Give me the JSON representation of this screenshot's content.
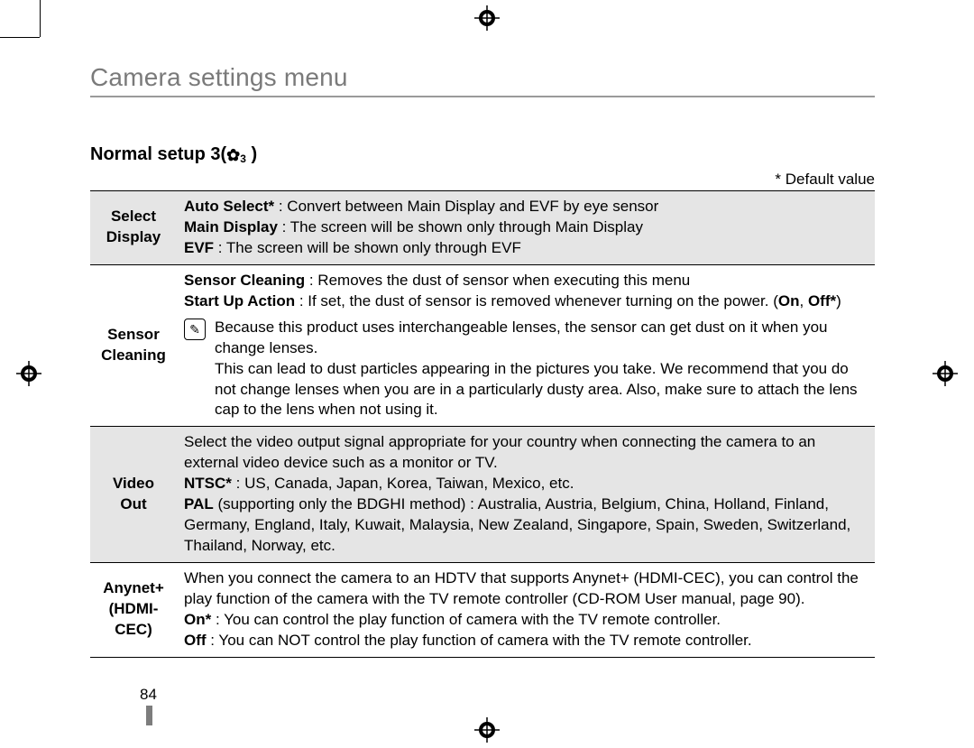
{
  "title": "Camera settings menu",
  "subtitle_prefix": "Normal setup 3(",
  "subtitle_gear": "✿",
  "subtitle_num": "3",
  "subtitle_suffix": " )",
  "default_note": "* Default value",
  "page_number": "84",
  "note_icon_glyph": "✎",
  "colors": {
    "title_text": "#7a7a7a",
    "title_rule": "#9a9a9a",
    "row_shade": "#e5e5e5",
    "page_bar": "#7d7d7d",
    "text": "#000000",
    "bg": "#ffffff"
  },
  "rows": [
    {
      "key": "select_display",
      "shaded": true,
      "label_lines": [
        "Select",
        "Display"
      ],
      "body": {
        "lines": [
          {
            "bold": "Auto Select*",
            "rest": " :   Convert between Main Display and EVF by eye sensor"
          },
          {
            "bold": "Main Display",
            "rest": " : The screen will be shown only through Main Display"
          },
          {
            "bold": "EVF",
            "rest": " : The screen will be shown only through EVF"
          }
        ]
      }
    },
    {
      "key": "sensor_cleaning",
      "shaded": false,
      "label_lines": [
        "Sensor",
        "Cleaning"
      ],
      "body": {
        "lines": [
          {
            "bold": "Sensor Cleaning",
            "rest": " : Removes the dust of sensor when executing this menu"
          },
          {
            "bold": "Start Up Action",
            "rest": " : If set, the dust of sensor is removed whenever turning on the power. (",
            "bold2": "On",
            "mid": ", ",
            "bold3": "Off*",
            "tail": ")"
          }
        ],
        "note": "Because this product uses interchangeable lenses, the sensor can get dust on it when you change lenses.\nThis can lead to dust particles appearing in the pictures you take. We recommend that you do not change lenses when you are in a particularly dusty area. Also, make sure to attach the lens cap to the lens when not using it."
      }
    },
    {
      "key": "video_out",
      "shaded": true,
      "label_lines": [
        "Video",
        "Out"
      ],
      "body": {
        "intro": "Select the video output signal appropriate for your country when connecting the camera to an external video device such as a monitor or TV.",
        "lines": [
          {
            "bold": "NTSC*",
            "rest": " : US, Canada, Japan, Korea, Taiwan, Mexico, etc."
          },
          {
            "bold": "PAL",
            "rest": " (supporting only the BDGHI method) : Australia, Austria, Belgium, China, Holland, Finland, Germany, England, Italy, Kuwait, Malaysia, New Zealand, Singapore, Spain, Sweden, Switzerland, Thailand, Norway, etc."
          }
        ]
      }
    },
    {
      "key": "anynet",
      "shaded": false,
      "label_lines": [
        "Anynet+",
        "(HDMI-",
        "CEC)"
      ],
      "body": {
        "intro": "When you connect the camera to an HDTV that supports Anynet+ (HDMI-CEC), you can control the play function of the camera with the TV remote controller (CD-ROM User manual, page 90).",
        "lines": [
          {
            "bold": "On*",
            "rest": " : You can control the play function of camera with the TV remote controller."
          },
          {
            "bold": "Off",
            "rest": " : You can NOT control the play function of camera with the TV remote controller."
          }
        ]
      }
    }
  ]
}
